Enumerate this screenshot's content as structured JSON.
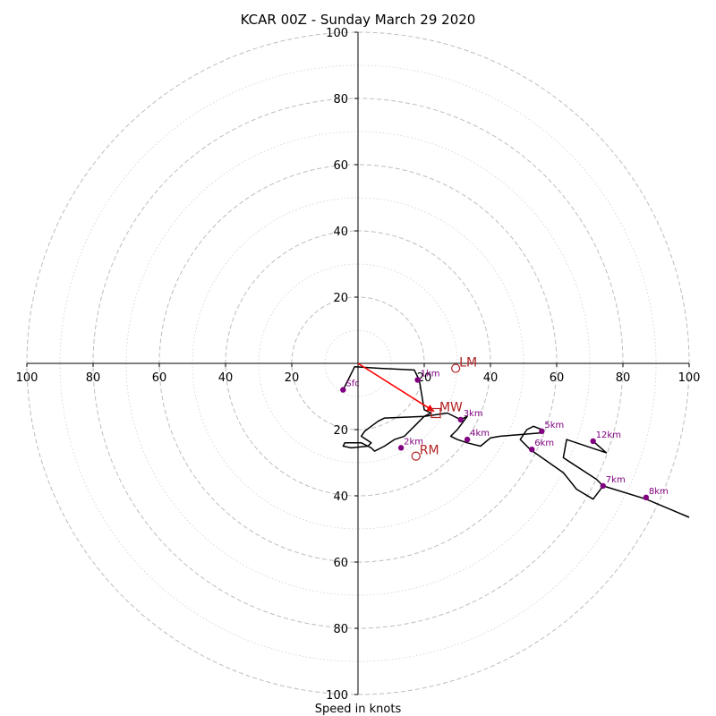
{
  "chart_data": {
    "type": "scatter",
    "subtype": "hodograph",
    "title": "KCAR 00Z - Sunday March 29 2020",
    "xlabel": "Speed in knots",
    "xlim": [
      -100,
      100
    ],
    "ylim": [
      -100,
      100
    ],
    "ring_labels": [
      "20",
      "40",
      "60",
      "80",
      "100"
    ],
    "x_tick_labels": [
      "100",
      "80",
      "60",
      "40",
      "20",
      "20",
      "40",
      "60",
      "80",
      "100"
    ],
    "x_tick_values": [
      -100,
      -80,
      -60,
      -40,
      -20,
      20,
      40,
      60,
      80,
      100
    ],
    "y_tick_labels": [
      "100",
      "80",
      "60",
      "40",
      "20",
      "20",
      "40",
      "60",
      "80",
      "100"
    ],
    "y_tick_values": [
      100,
      80,
      60,
      40,
      20,
      -20,
      -40,
      -60,
      -80,
      -100
    ],
    "grid": {
      "major_step": 20,
      "minor_step": 10,
      "major_style": "dashed",
      "minor_style": "dotted"
    },
    "trace": {
      "color": "#000000",
      "points": [
        [
          -4.5,
          -8
        ],
        [
          -1,
          -1
        ],
        [
          7,
          -1.5
        ],
        [
          17,
          -2
        ],
        [
          18.5,
          -5
        ],
        [
          19,
          -8
        ],
        [
          20,
          -14
        ],
        [
          22,
          -15
        ],
        [
          20,
          -16
        ],
        [
          17,
          -19
        ],
        [
          14,
          -22
        ],
        [
          11,
          -23
        ],
        [
          8,
          -25
        ],
        [
          5,
          -26.5
        ],
        [
          4,
          -25.5
        ],
        [
          3,
          -25
        ],
        [
          1,
          -24
        ],
        [
          -2,
          -24
        ],
        [
          -4,
          -24
        ],
        [
          -4.5,
          -25
        ],
        [
          -2,
          -25.5
        ],
        [
          3,
          -25
        ],
        [
          4,
          -24
        ],
        [
          2.5,
          -23
        ],
        [
          1,
          -22
        ],
        [
          2,
          -20.5
        ],
        [
          4,
          -19
        ],
        [
          6,
          -17.5
        ],
        [
          8,
          -16.5
        ],
        [
          20,
          -16
        ],
        [
          27,
          -15
        ],
        [
          31,
          -17
        ],
        [
          33,
          -16
        ],
        [
          30,
          -20
        ],
        [
          28,
          -22
        ],
        [
          30,
          -23
        ],
        [
          33,
          -24
        ],
        [
          37,
          -25
        ],
        [
          40,
          -22.5
        ],
        [
          43,
          -22
        ],
        [
          55,
          -21
        ],
        [
          55.5,
          -20
        ],
        [
          53,
          -19
        ],
        [
          51,
          -20
        ],
        [
          49,
          -23
        ],
        [
          52,
          -26
        ],
        [
          62,
          -33
        ],
        [
          66,
          -38
        ],
        [
          71,
          -41
        ],
        [
          74,
          -37
        ],
        [
          72,
          -35
        ],
        [
          62,
          -28.5
        ],
        [
          63,
          -23
        ],
        [
          75,
          -27
        ],
        [
          71,
          -23.5
        ]
      ]
    },
    "trace2": [
      [
        74,
        -37
      ],
      [
        87,
        -41
      ],
      [
        100,
        -46.5
      ]
    ],
    "height_markers": [
      {
        "label": "Sfc",
        "u": -4.5,
        "v": -8
      },
      {
        "label": "1km",
        "u": 18,
        "v": -5
      },
      {
        "label": "2km",
        "u": 13,
        "v": -25.5
      },
      {
        "label": "3km",
        "u": 31,
        "v": -17
      },
      {
        "label": "4km",
        "u": 33,
        "v": -23
      },
      {
        "label": "5km",
        "u": 55.5,
        "v": -20.5
      },
      {
        "label": "6km",
        "u": 52.5,
        "v": -26
      },
      {
        "label": "7km",
        "u": 74,
        "v": -37
      },
      {
        "label": "8km",
        "u": 87,
        "v": -40.5
      },
      {
        "label": "12km",
        "u": 71,
        "v": -23.5
      }
    ],
    "marker_color": "#800080",
    "storm_motion": [
      {
        "label": "LM",
        "u": 29.5,
        "v": -1.5,
        "shape": "circle"
      },
      {
        "label": "MW",
        "u": 23.5,
        "v": -15,
        "shape": "square"
      },
      {
        "label": "RM",
        "u": 17.5,
        "v": -28,
        "shape": "circle"
      }
    ],
    "storm_color": "#b22222",
    "mean_wind_vector": {
      "u": 23,
      "v": -14.5,
      "color": "#ff0000"
    }
  }
}
